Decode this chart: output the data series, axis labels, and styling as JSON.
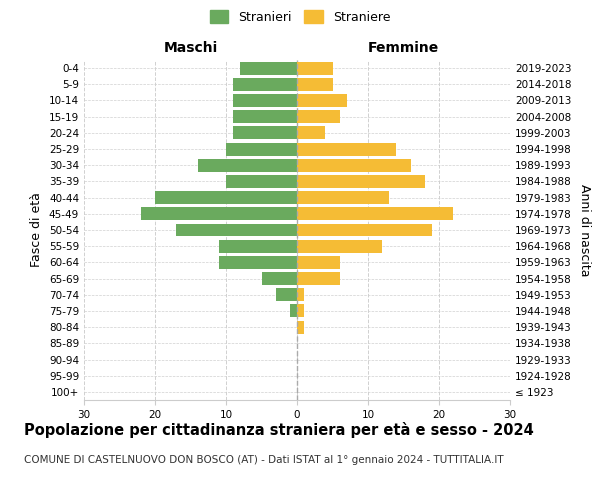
{
  "age_groups": [
    "100+",
    "95-99",
    "90-94",
    "85-89",
    "80-84",
    "75-79",
    "70-74",
    "65-69",
    "60-64",
    "55-59",
    "50-54",
    "45-49",
    "40-44",
    "35-39",
    "30-34",
    "25-29",
    "20-24",
    "15-19",
    "10-14",
    "5-9",
    "0-4"
  ],
  "birth_years": [
    "≤ 1923",
    "1924-1928",
    "1929-1933",
    "1934-1938",
    "1939-1943",
    "1944-1948",
    "1949-1953",
    "1954-1958",
    "1959-1963",
    "1964-1968",
    "1969-1973",
    "1974-1978",
    "1979-1983",
    "1984-1988",
    "1989-1993",
    "1994-1998",
    "1999-2003",
    "2004-2008",
    "2009-2013",
    "2014-2018",
    "2019-2023"
  ],
  "males": [
    0,
    0,
    0,
    0,
    0,
    1,
    3,
    5,
    11,
    11,
    17,
    22,
    20,
    10,
    14,
    10,
    9,
    9,
    9,
    9,
    8
  ],
  "females": [
    0,
    0,
    0,
    0,
    1,
    1,
    1,
    6,
    6,
    12,
    19,
    22,
    13,
    18,
    16,
    14,
    4,
    6,
    7,
    5,
    5
  ],
  "male_color": "#6aaa5e",
  "female_color": "#f5bc35",
  "bar_height": 0.8,
  "xlim": 30,
  "title": "Popolazione per cittadinanza straniera per età e sesso - 2024",
  "subtitle": "COMUNE DI CASTELNUOVO DON BOSCO (AT) - Dati ISTAT al 1° gennaio 2024 - TUTTITALIA.IT",
  "xlabel_left": "Maschi",
  "xlabel_right": "Femmine",
  "ylabel_left": "Fasce di età",
  "ylabel_right": "Anni di nascita",
  "legend_males": "Stranieri",
  "legend_females": "Straniere",
  "background_color": "#ffffff",
  "grid_color": "#d0d0d0",
  "title_fontsize": 10.5,
  "subtitle_fontsize": 7.5,
  "axis_label_fontsize": 9,
  "tick_fontsize": 7.5
}
